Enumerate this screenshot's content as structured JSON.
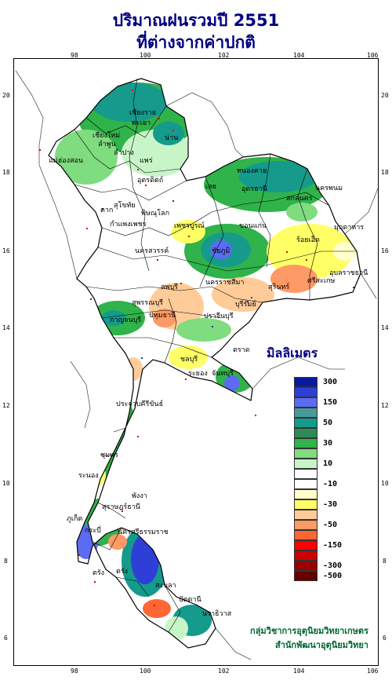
{
  "title": {
    "line1": "ปริมาณฝนรวมปี  2551",
    "line2": "ที่ต่างจากค่าปกติ"
  },
  "axes": {
    "lon_ticks": [
      "98",
      "100",
      "102",
      "104",
      "106"
    ],
    "lat_ticks": [
      "20",
      "18",
      "16",
      "14",
      "12",
      "10",
      "8",
      "6"
    ]
  },
  "legend": {
    "title": "มิลลิเมตร",
    "classes": [
      {
        "label": "300",
        "color": "#0a1aa0"
      },
      {
        "label": "",
        "color": "#2e3fd8"
      },
      {
        "label": "150",
        "color": "#5b6cf0"
      },
      {
        "label": "",
        "color": "#4a9a9a"
      },
      {
        "label": "50",
        "color": "#159a8c"
      },
      {
        "label": "",
        "color": "#2e8b57"
      },
      {
        "label": "30",
        "color": "#2fb34a"
      },
      {
        "label": "",
        "color": "#7fdc7f"
      },
      {
        "label": "10",
        "color": "#c8f5c8"
      },
      {
        "label": "",
        "color": "#ffffff"
      },
      {
        "label": "-10",
        "color": "#ffffff"
      },
      {
        "label": "",
        "color": "#ffffcc"
      },
      {
        "label": "-30",
        "color": "#ffff66"
      },
      {
        "label": "",
        "color": "#ffcc99"
      },
      {
        "label": "-50",
        "color": "#ff9966"
      },
      {
        "label": "",
        "color": "#ff6633"
      },
      {
        "label": "-150",
        "color": "#ff0000"
      },
      {
        "label": "",
        "color": "#cc0000"
      },
      {
        "label": "-300",
        "color": "#990000"
      },
      {
        "label": "-500",
        "color": "#660000"
      }
    ]
  },
  "provinces": [
    {
      "name": "เชียงราย"
    },
    {
      "name": "เชียงใหม่"
    },
    {
      "name": "ลำพูน"
    },
    {
      "name": "ลำปาง"
    },
    {
      "name": "พะเยา"
    },
    {
      "name": "แพร่"
    },
    {
      "name": "น่าน"
    },
    {
      "name": "อุตรดิตถ์"
    },
    {
      "name": "ตาก"
    },
    {
      "name": "สุโขทัย"
    },
    {
      "name": "พิษณุโลก"
    },
    {
      "name": "เพชรบูรณ์"
    },
    {
      "name": "กำแพงเพชร"
    },
    {
      "name": "นครสวรรค์"
    },
    {
      "name": "หนองคาย"
    },
    {
      "name": "อุดรธานี"
    },
    {
      "name": "สกลนคร"
    },
    {
      "name": "นครพนม"
    },
    {
      "name": "เลย"
    },
    {
      "name": "ขอนแก่น"
    },
    {
      "name": "ชัยภูมิ"
    },
    {
      "name": "ร้อยเอ็ด"
    },
    {
      "name": "มุกดาหาร"
    },
    {
      "name": "อุบลราชธานี"
    },
    {
      "name": "สุรินทร์"
    },
    {
      "name": "ศรีสะเกษ"
    },
    {
      "name": "บุรีรัมย์"
    },
    {
      "name": "นครราชสีมา"
    },
    {
      "name": "ลพบุรี"
    },
    {
      "name": "สุพรรณบุรี"
    },
    {
      "name": "กาญจนบุรี"
    },
    {
      "name": "ปทุมธานี"
    },
    {
      "name": "ปราจีนบุรี"
    },
    {
      "name": "ชลบุรี"
    },
    {
      "name": "ระยอง"
    },
    {
      "name": "จันทบุรี"
    },
    {
      "name": "ประจวบคีรีขันธ์"
    },
    {
      "name": "ชุมพร"
    },
    {
      "name": "ระนอง"
    },
    {
      "name": "สุราษฎร์ธานี"
    },
    {
      "name": "นครศรีธรรมราช"
    },
    {
      "name": "ภูเก็ต"
    },
    {
      "name": "กระบี่"
    },
    {
      "name": "ตรัง"
    },
    {
      "name": "สงขลา"
    },
    {
      "name": "ปัตตานี"
    },
    {
      "name": "นราธิวาส"
    },
    {
      "name": "แม่ฮ่องสอน"
    },
    {
      "name": "ตรัง"
    },
    {
      "name": "พังงา"
    },
    {
      "name": "ตราด"
    }
  ],
  "credits": {
    "line1": "กลุ่มวิชาการอุตุนิยมวิทยาเกษตร",
    "line2": "สำนักพัฒนาอุตุนิยมวิทยา"
  }
}
